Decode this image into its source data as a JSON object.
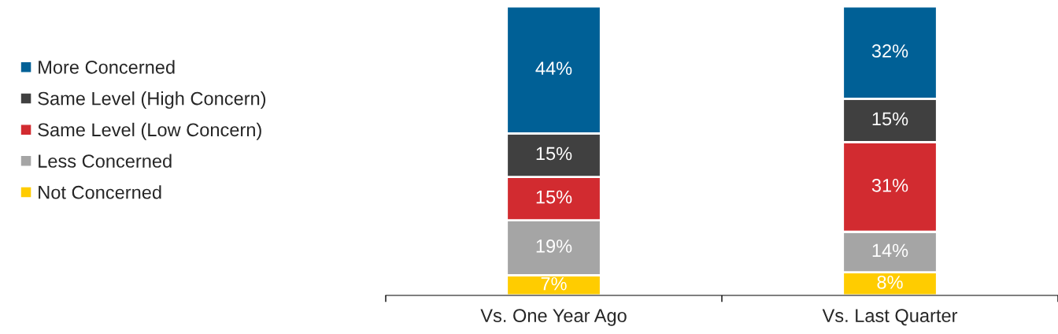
{
  "chart_data": {
    "type": "bar",
    "stacked": true,
    "legend": "left",
    "categories": [
      "Vs. One Year Ago",
      "Vs. Last Quarter"
    ],
    "series": [
      {
        "name": "Not Concerned",
        "color": "#ffcc00",
        "values": [
          7,
          8
        ],
        "value_labels": [
          "7%",
          "8%"
        ]
      },
      {
        "name": "Less Concerned",
        "color": "#a5a5a5",
        "values": [
          19,
          14
        ],
        "value_labels": [
          "19%",
          "14%"
        ]
      },
      {
        "name": "Same Level (Low Concern)",
        "color": "#d22b30",
        "values": [
          15,
          31
        ],
        "value_labels": [
          "15%",
          "31%"
        ]
      },
      {
        "name": "Same Level (High Concern)",
        "color": "#404040",
        "values": [
          15,
          15
        ],
        "value_labels": [
          "15%",
          "15%"
        ]
      },
      {
        "name": "More Concerned",
        "color": "#006096",
        "values": [
          44,
          32
        ],
        "value_labels": [
          "44%",
          "32%"
        ]
      }
    ]
  }
}
